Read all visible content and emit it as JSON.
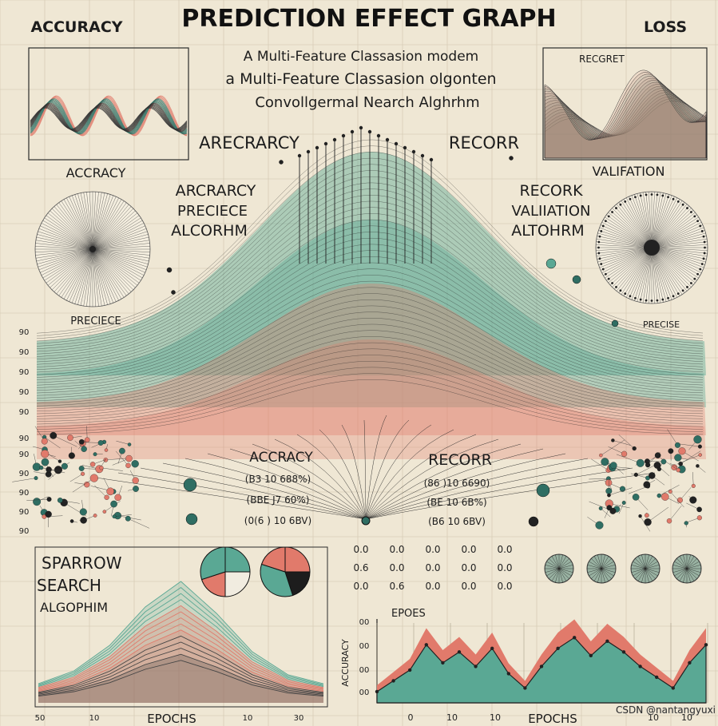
{
  "header": {
    "title": "PREDICTION EFFECT GRAPH",
    "left_label": "ACCURACY",
    "right_label": "LOSS",
    "subtitles": [
      "A Multi-Feature Classasion modem",
      "a Multi-Feature Classasion olgonten",
      "Convollgermal Nearch Alghrhm"
    ]
  },
  "panels": {
    "top_left_caption": "ACCRACY",
    "top_right_label": "RECGRET",
    "top_right_caption": "VALIFATION",
    "center_left_heading": "ARECRARCY",
    "center_right_heading": "RECORR",
    "left_block": [
      "ARCRARCY",
      "PRECIECE",
      "ALCORHM"
    ],
    "right_block": [
      "RECORK",
      "VALIIATION",
      "ALTOHRM"
    ],
    "left_small_caption": "PRECIECE",
    "right_small_caption": "PRECISE",
    "accuracy_block": {
      "heading": "ACCRACY",
      "rows": [
        "(B3 10 688%)",
        "(BBE J7 60%)",
        "(0(6 ) 10 6BV)"
      ]
    },
    "recorr_block": {
      "heading": "RECORR",
      "rows": [
        "(86 )10 6690)",
        "(BE 10 6B%)",
        "(B6 10 6BV)"
      ]
    },
    "sparrow": [
      "SPARROW",
      "SEARCH",
      "ALGOPHIM"
    ],
    "mini_table": [
      "0.0",
      "0.0",
      "0.0",
      "0.0",
      "0.0",
      "0.6",
      "0.0",
      "0.0",
      "0.0",
      "0.0",
      "0.0",
      "0.6",
      "0.0",
      "0.0",
      "0.0"
    ],
    "bottom_right_label": "EPOES",
    "bottom_right_ylabel": "ACCURACY",
    "bottom_left_xlabel": "EPOCHS",
    "bottom_right_xlabel": "EPOCHS",
    "watermark": "CSDN @nantangyuxi"
  },
  "colors": {
    "teal": "#5aa894",
    "salmon": "#e17a6b",
    "dark_teal": "#2f6e63",
    "ink": "#1c1c1c",
    "paper": "#efe7d4"
  },
  "chart_data": [
    {
      "type": "line",
      "title": "",
      "note": "central bell-shaped band chart",
      "y_ticks": [
        "90",
        "90",
        "90",
        "90",
        "90",
        "90"
      ],
      "series": [
        {
          "name": "",
          "x": [
            0,
            1,
            2,
            3,
            4,
            5,
            6,
            7,
            8,
            9,
            10
          ],
          "y": [
            0.3,
            0.33,
            0.4,
            0.55,
            0.8,
            0.95,
            0.8,
            0.55,
            0.4,
            0.33,
            0.3
          ]
        }
      ]
    },
    {
      "type": "area",
      "title": "",
      "xlabel": "EPOCHS",
      "x_ticks": [
        "50",
        "10",
        "10",
        "30"
      ],
      "series": [
        {
          "name": "",
          "x": [
            0,
            1,
            2,
            3,
            4,
            5,
            6,
            7,
            8
          ],
          "y": [
            0.15,
            0.25,
            0.45,
            0.75,
            0.95,
            0.7,
            0.4,
            0.22,
            0.15
          ]
        }
      ]
    },
    {
      "type": "area",
      "title": "",
      "xlabel": "EPOCHS",
      "ylabel": "ACCURACY",
      "x_ticks": [
        "0",
        "10",
        "10",
        "10",
        "10"
      ],
      "y_ticks": [
        "00",
        "00",
        "00",
        "00"
      ],
      "series": [
        {
          "name": "",
          "x": [
            0,
            1,
            2,
            3,
            4,
            5,
            6,
            7,
            8,
            9,
            10,
            11,
            12,
            13,
            14,
            15,
            16,
            17,
            18,
            19,
            20
          ],
          "y": [
            0.2,
            0.35,
            0.5,
            0.85,
            0.6,
            0.75,
            0.55,
            0.8,
            0.45,
            0.25,
            0.55,
            0.8,
            0.95,
            0.7,
            0.9,
            0.75,
            0.55,
            0.4,
            0.25,
            0.6,
            0.85
          ]
        }
      ]
    }
  ]
}
